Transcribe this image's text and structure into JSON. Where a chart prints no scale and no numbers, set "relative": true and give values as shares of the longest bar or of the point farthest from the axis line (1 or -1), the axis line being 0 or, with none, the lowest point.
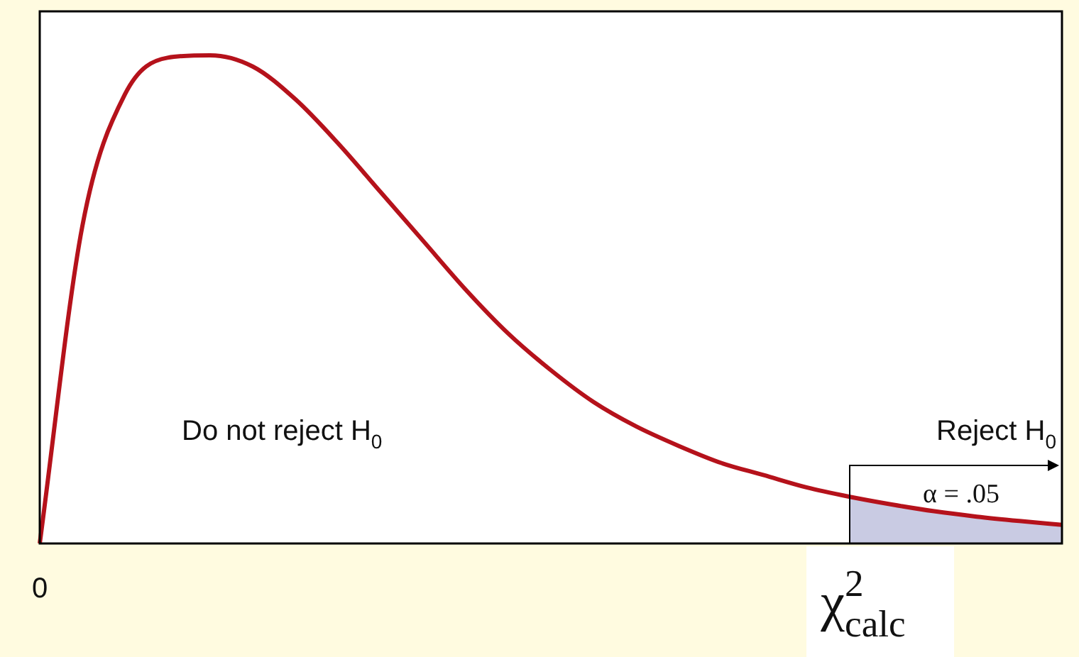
{
  "chart_data": {
    "type": "line",
    "relative": true,
    "categories": [
      "0",
      null,
      null,
      null,
      null,
      null,
      null,
      null,
      null,
      null,
      null,
      null,
      null,
      null,
      null,
      null,
      null,
      null,
      null,
      "χ$^{2}$$_{calc}$",
      null,
      null,
      null,
      null,
      null
    ],
    "series": [
      {
        "color": "#b5121b",
        "values": [
          0,
          0.65,
          0.92,
          0.995,
          1,
          0.977,
          0.91,
          0.82,
          0.72,
          0.62,
          0.52,
          0.43,
          0.355,
          0.29,
          0.24,
          0.2,
          0.165,
          0.14,
          0.115,
          0.096,
          0.08,
          0.066,
          0.055,
          0.046,
          0.038
        ]
      },
      {
        "type": "area",
        "color": "#c9cbe3",
        "values": [
          null,
          null,
          null,
          null,
          null,
          null,
          null,
          null,
          null,
          null,
          null,
          null,
          null,
          null,
          null,
          null,
          null,
          null,
          null,
          0.096,
          0.08,
          0.066,
          0.055,
          0.046,
          0.038
        ]
      }
    ],
    "annotations": [
      "Do not reject H$_{0}$",
      "Reject H$_{0}$",
      "α = .05"
    ]
  }
}
